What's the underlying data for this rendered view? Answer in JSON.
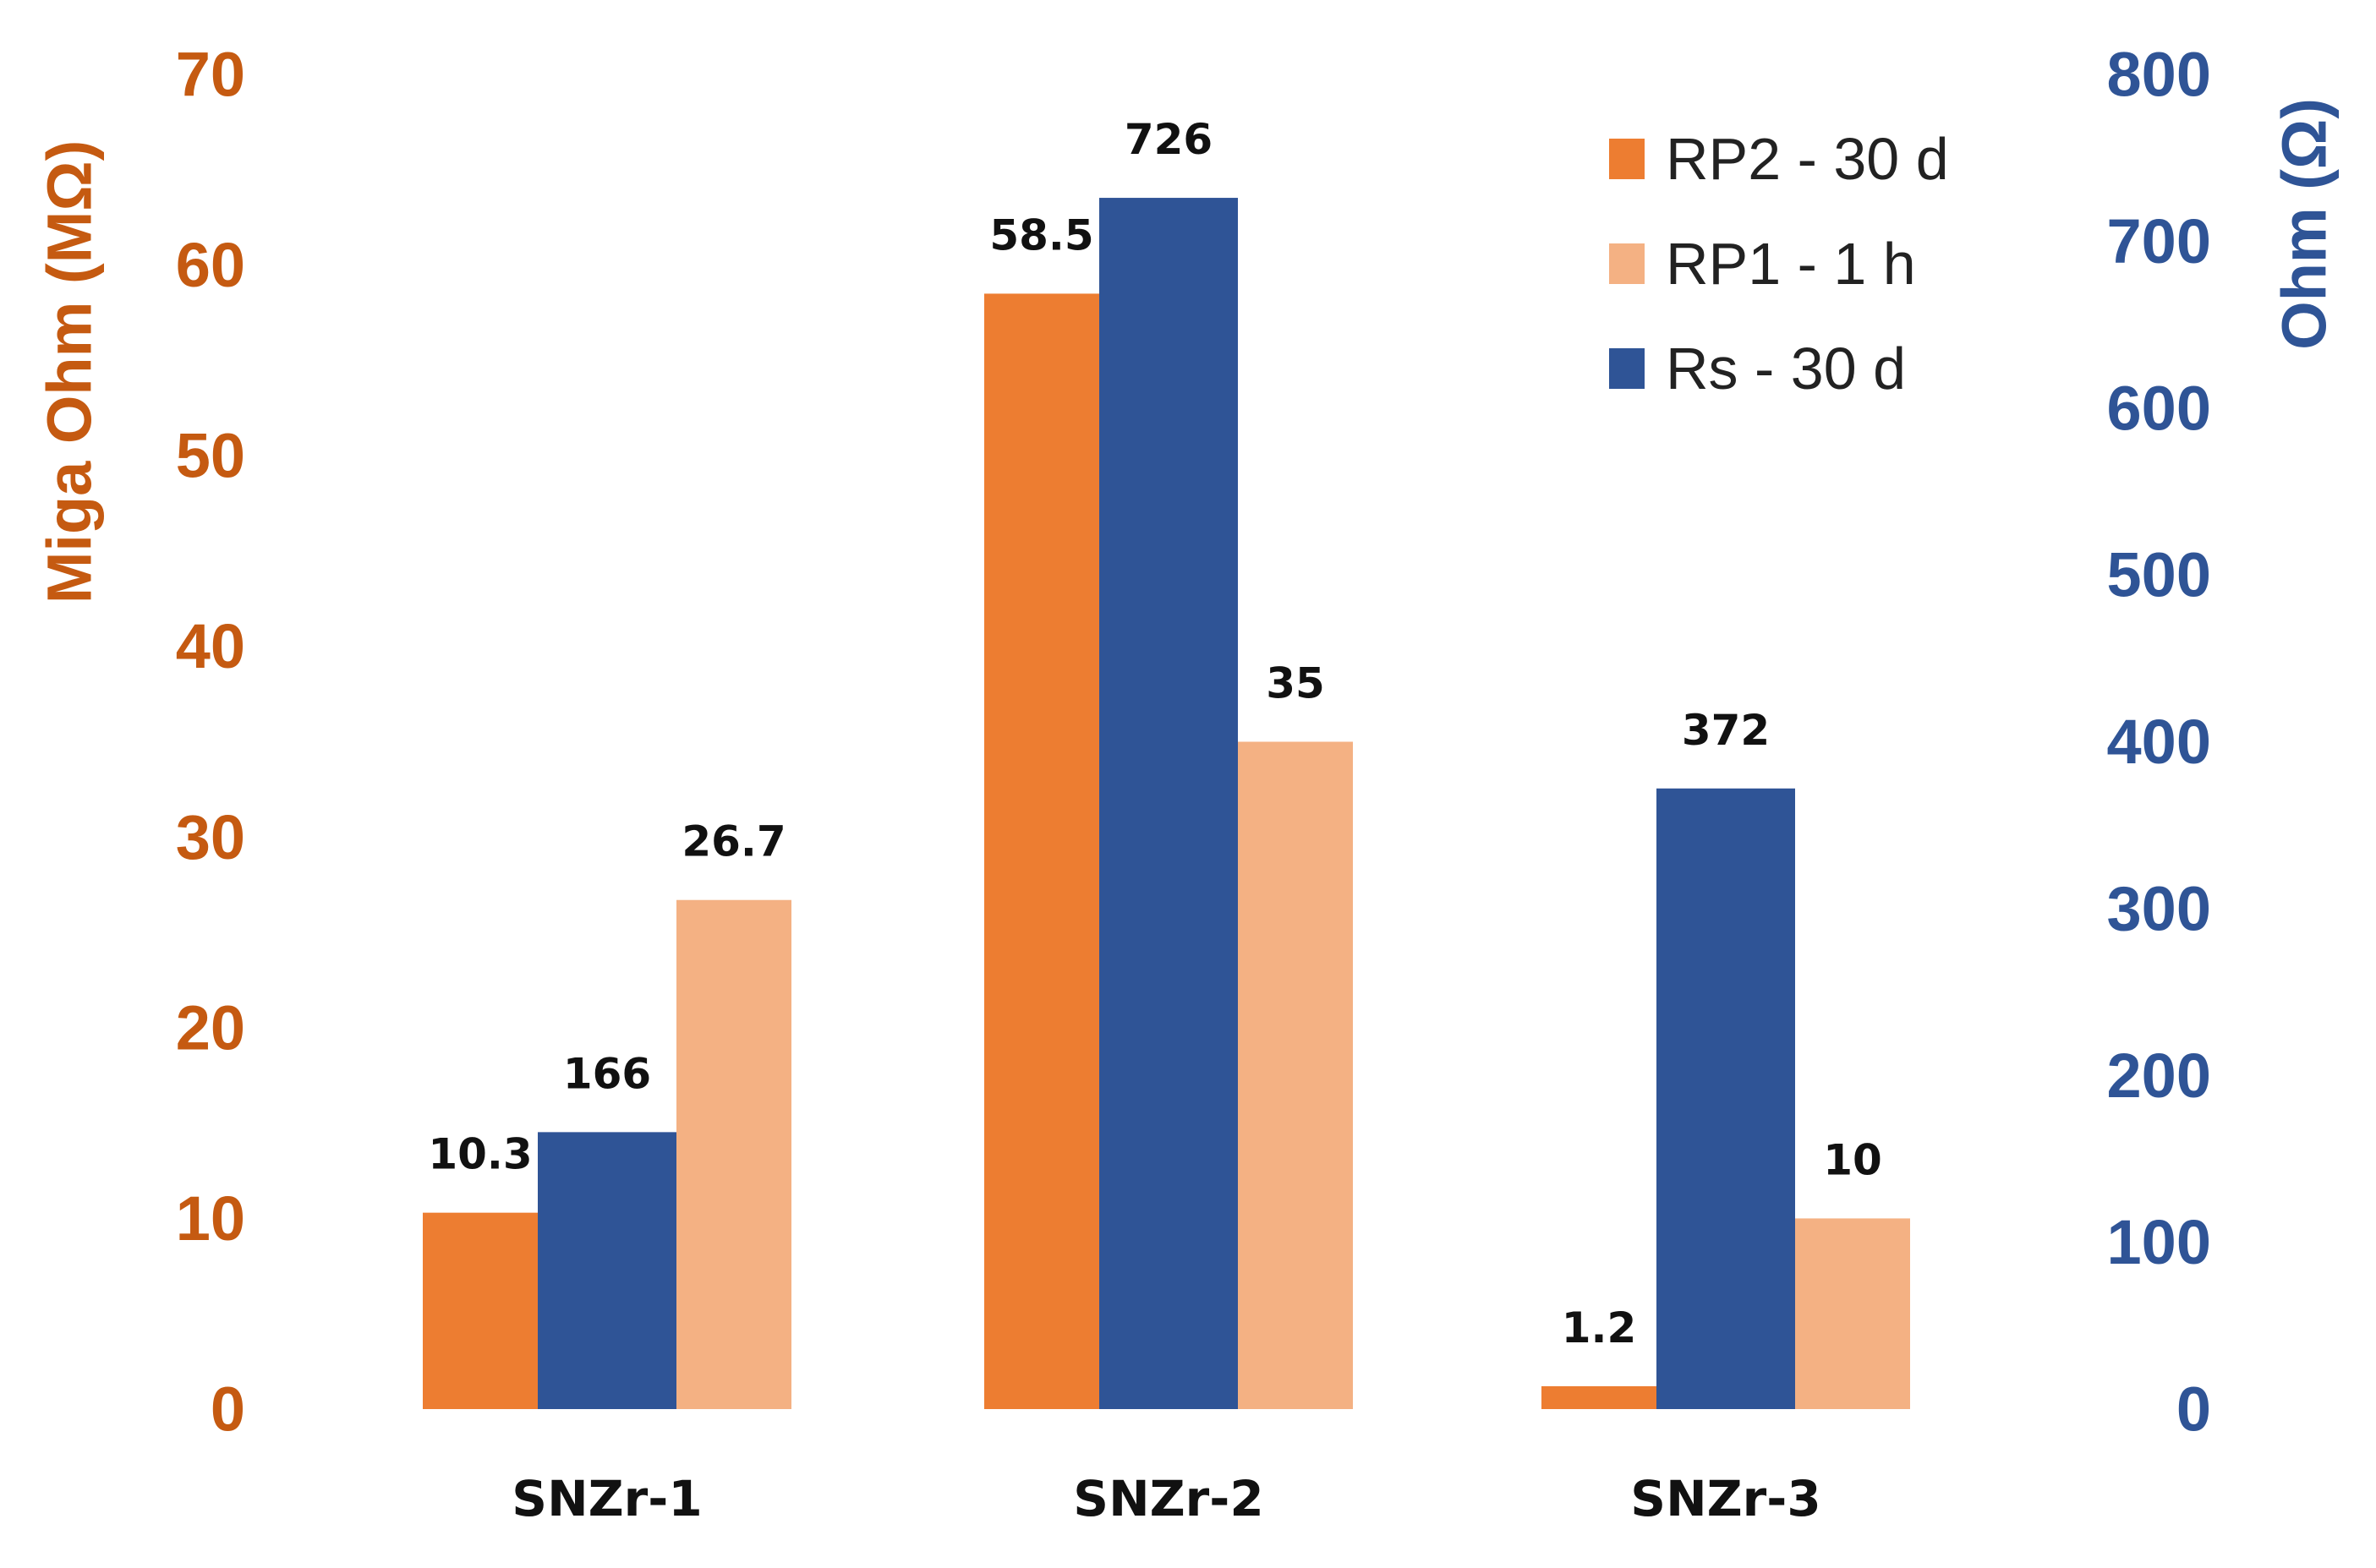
{
  "chart_data": {
    "type": "bar",
    "categories": [
      "SNZr-1",
      "SNZr-2",
      "SNZr-3"
    ],
    "series": [
      {
        "name": "RP2 - 30 d",
        "axis": "left",
        "color": "#ED7D31",
        "values": [
          10.3,
          58.5,
          1.2
        ],
        "labels": [
          "10.3",
          "58.5",
          "1.2"
        ]
      },
      {
        "name": "Rs - 30 d",
        "axis": "right",
        "color": "#2F5496",
        "values": [
          166,
          726,
          372
        ],
        "labels": [
          "166",
          "726",
          "372"
        ]
      },
      {
        "name": "RP1 - 1 h",
        "axis": "left",
        "color": "#F4B183",
        "values": [
          26.7,
          35,
          10
        ],
        "labels": [
          "26.7",
          "35",
          "10"
        ]
      }
    ],
    "bar_order": [
      "RP2 - 30 d",
      "Rs - 30 d",
      "RP1 - 1 h"
    ],
    "legend_order": [
      "RP2 - 30 d",
      "RP1 - 1 h",
      "Rs - 30 d"
    ],
    "legend_position": "top-right",
    "left_axis": {
      "title": "Miga Ohm (MΩ)",
      "range": [
        0,
        70
      ],
      "ticks": [
        0,
        10,
        20,
        30,
        40,
        50,
        60,
        70
      ],
      "color": "#C55A11"
    },
    "right_axis": {
      "title": "Ohm (Ω)",
      "range": [
        0,
        800
      ],
      "ticks": [
        0,
        100,
        200,
        300,
        400,
        500,
        600,
        700,
        800
      ],
      "color": "#2F5496"
    },
    "gridlines": {
      "left_color": "#C55A11",
      "right_color": "#A9B4DC",
      "style": "dashed"
    }
  }
}
